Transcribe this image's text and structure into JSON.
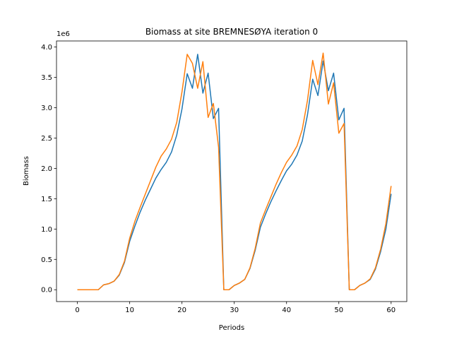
{
  "chart_data": {
    "type": "line",
    "title": "Biomass at site BREMNESØYA iteration 0",
    "xlabel": "Periods",
    "ylabel": "Biomass",
    "y_offset_text": "1e6",
    "xlim": [
      -4,
      63
    ],
    "ylim": [
      -0.195,
      4.1
    ],
    "xticks": [
      0,
      10,
      20,
      30,
      40,
      50,
      60
    ],
    "yticks": [
      0.0,
      0.5,
      1.0,
      1.5,
      2.0,
      2.5,
      3.0,
      3.5,
      4.0
    ],
    "ytick_labels": [
      "0.0",
      "0.5",
      "1.0",
      "1.5",
      "2.0",
      "2.5",
      "3.0",
      "3.5",
      "4.0"
    ],
    "grid": false,
    "x": [
      0,
      1,
      2,
      3,
      4,
      5,
      6,
      7,
      8,
      9,
      10,
      11,
      12,
      13,
      14,
      15,
      16,
      17,
      18,
      19,
      20,
      21,
      22,
      23,
      24,
      25,
      26,
      27,
      28,
      29,
      30,
      31,
      32,
      33,
      34,
      35,
      36,
      37,
      38,
      39,
      40,
      41,
      42,
      43,
      44,
      45,
      46,
      47,
      48,
      49,
      50,
      51,
      52,
      53,
      54,
      55,
      56,
      57,
      58,
      59,
      60
    ],
    "series": [
      {
        "color": "#1f77b4",
        "values": [
          0.0,
          0.0,
          0.0,
          0.0,
          0.0,
          0.08,
          0.1,
          0.14,
          0.24,
          0.45,
          0.8,
          1.05,
          1.28,
          1.48,
          1.66,
          1.84,
          1.98,
          2.1,
          2.27,
          2.55,
          2.98,
          3.56,
          3.32,
          3.88,
          3.24,
          3.57,
          2.82,
          2.99,
          0.0,
          0.0,
          0.07,
          0.11,
          0.17,
          0.35,
          0.65,
          1.03,
          1.25,
          1.45,
          1.63,
          1.8,
          1.96,
          2.07,
          2.22,
          2.45,
          2.88,
          3.47,
          3.2,
          3.77,
          3.28,
          3.57,
          2.8,
          2.99,
          0.0,
          0.0,
          0.07,
          0.11,
          0.17,
          0.34,
          0.63,
          1.0,
          1.58
        ]
      },
      {
        "color": "#ff7f0e",
        "values": [
          0.0,
          0.0,
          0.0,
          0.0,
          0.0,
          0.08,
          0.1,
          0.14,
          0.25,
          0.47,
          0.85,
          1.13,
          1.36,
          1.58,
          1.8,
          2.02,
          2.2,
          2.32,
          2.48,
          2.76,
          3.26,
          3.88,
          3.73,
          3.32,
          3.76,
          2.84,
          3.07,
          2.35,
          0.0,
          0.0,
          0.07,
          0.11,
          0.17,
          0.36,
          0.68,
          1.1,
          1.32,
          1.53,
          1.74,
          1.93,
          2.1,
          2.22,
          2.37,
          2.64,
          3.12,
          3.78,
          3.38,
          3.9,
          3.06,
          3.41,
          2.58,
          2.74,
          0.0,
          0.0,
          0.07,
          0.11,
          0.18,
          0.36,
          0.67,
          1.09,
          1.71
        ]
      }
    ]
  }
}
